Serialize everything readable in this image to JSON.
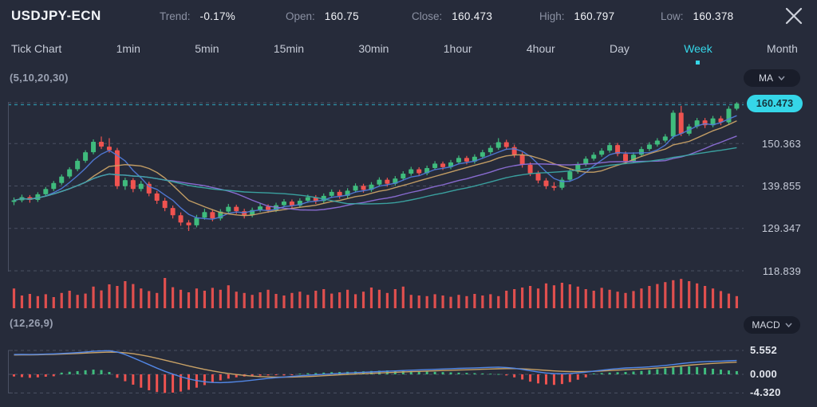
{
  "header": {
    "symbol": "USDJPY-ECN",
    "stats": [
      {
        "label": "Trend:",
        "value": "-0.17%"
      },
      {
        "label": "Open:",
        "value": "160.75"
      },
      {
        "label": "Close:",
        "value": "160.473"
      },
      {
        "label": "High:",
        "value": "160.797"
      },
      {
        "label": "Low:",
        "value": "160.378"
      }
    ]
  },
  "tabs": {
    "items": [
      "Tick Chart",
      "1min",
      "5min",
      "15min",
      "30min",
      "1hour",
      "4hour",
      "Day",
      "Week",
      "Month"
    ],
    "active": "Week",
    "active_index": 8
  },
  "colors": {
    "bg": "#262b3a",
    "text_primary": "#f2f4f8",
    "text_secondary": "#8b91a3",
    "tab_text": "#c5cad6",
    "accent_cyan": "#35d6e8",
    "pill_bg": "#191d2a",
    "pill_text": "#d4d8e2",
    "price_label": "#c7ccd9",
    "macd_label": "#e4e7ee",
    "grid": "#4a5063",
    "grid_accent": "#2e93a8",
    "up": "#3fbb7d",
    "down": "#ef5350",
    "ma5": "#507ad8",
    "ma10": "#c9a266",
    "ma20": "#8d6fd8",
    "ma30": "#3ba7a4",
    "dif": "#5287e6",
    "dea": "#c9a266"
  },
  "chart_data": [
    {
      "type": "candlestick",
      "title": "USDJPY-ECN Weekly candlestick with MA(5,10,20,30) and volume",
      "indicator_label": "(5,10,20,30)",
      "selector_label": "MA",
      "last_price": "160.473",
      "y_axis_labels": [
        "160.473",
        "150.363",
        "139.855",
        "129.347",
        "118.839"
      ],
      "ma_periods": [
        5,
        10,
        20,
        30
      ],
      "legend_position": "none",
      "grid": "dashed-horizontal",
      "candles": [
        [
          136.1,
          137.2,
          135.3,
          136.5
        ],
        [
          136.5,
          137.9,
          136.0,
          137.3
        ],
        [
          137.3,
          137.8,
          135.9,
          136.6
        ],
        [
          136.6,
          138.5,
          136.1,
          138.0
        ],
        [
          138.0,
          139.8,
          137.5,
          139.3
        ],
        [
          139.3,
          141.3,
          138.8,
          140.8
        ],
        [
          140.8,
          142.9,
          140.3,
          142.4
        ],
        [
          142.4,
          144.7,
          141.9,
          144.2
        ],
        [
          144.2,
          146.8,
          143.7,
          146.3
        ],
        [
          146.3,
          148.9,
          145.8,
          148.4
        ],
        [
          148.4,
          151.6,
          147.9,
          151.0
        ],
        [
          151.0,
          152.3,
          149.2,
          149.8
        ],
        [
          149.8,
          151.9,
          148.3,
          148.9
        ],
        [
          148.9,
          149.5,
          139.3,
          140.0
        ],
        [
          140.0,
          142.1,
          139.1,
          141.5
        ],
        [
          141.5,
          142.0,
          138.5,
          139.3
        ],
        [
          139.3,
          141.3,
          138.7,
          140.6
        ],
        [
          140.6,
          141.1,
          137.5,
          138.2
        ],
        [
          138.2,
          138.8,
          135.6,
          136.4
        ],
        [
          136.4,
          137.1,
          133.8,
          134.6
        ],
        [
          134.6,
          135.2,
          132.0,
          132.8
        ],
        [
          132.8,
          133.5,
          130.2,
          131.0
        ],
        [
          131.0,
          131.6,
          128.9,
          130.3
        ],
        [
          130.3,
          132.9,
          129.8,
          132.2
        ],
        [
          132.2,
          134.4,
          131.7,
          133.6
        ],
        [
          133.6,
          134.1,
          131.3,
          132.0
        ],
        [
          132.0,
          134.3,
          131.5,
          133.7
        ],
        [
          133.7,
          135.6,
          133.2,
          134.9
        ],
        [
          134.9,
          135.4,
          133.1,
          133.8
        ],
        [
          133.8,
          134.4,
          132.0,
          132.8
        ],
        [
          132.8,
          134.7,
          132.3,
          134.1
        ],
        [
          134.1,
          135.7,
          133.6,
          135.0
        ],
        [
          135.0,
          135.5,
          133.4,
          134.1
        ],
        [
          134.1,
          135.9,
          133.6,
          135.3
        ],
        [
          135.3,
          136.8,
          134.8,
          136.2
        ],
        [
          136.2,
          136.7,
          134.5,
          135.2
        ],
        [
          135.2,
          137.0,
          134.7,
          136.4
        ],
        [
          136.4,
          137.9,
          135.9,
          137.3
        ],
        [
          137.3,
          137.8,
          135.6,
          136.3
        ],
        [
          136.3,
          138.2,
          135.8,
          137.6
        ],
        [
          137.6,
          139.2,
          137.1,
          138.6
        ],
        [
          138.6,
          139.1,
          136.9,
          137.6
        ],
        [
          137.6,
          139.5,
          137.1,
          138.9
        ],
        [
          138.9,
          140.7,
          138.4,
          140.1
        ],
        [
          140.1,
          140.6,
          138.4,
          139.1
        ],
        [
          139.1,
          141.0,
          138.6,
          140.4
        ],
        [
          140.4,
          142.2,
          139.9,
          141.6
        ],
        [
          141.6,
          142.1,
          139.9,
          140.6
        ],
        [
          140.6,
          142.5,
          140.1,
          141.9
        ],
        [
          141.9,
          143.7,
          141.4,
          143.1
        ],
        [
          143.1,
          144.8,
          142.6,
          144.2
        ],
        [
          144.2,
          144.7,
          142.5,
          143.2
        ],
        [
          143.2,
          145.1,
          142.7,
          144.5
        ],
        [
          144.5,
          146.2,
          144.0,
          145.6
        ],
        [
          145.6,
          146.1,
          144.0,
          144.7
        ],
        [
          144.7,
          146.5,
          144.2,
          145.9
        ],
        [
          145.9,
          147.6,
          145.4,
          147.0
        ],
        [
          147.0,
          147.5,
          145.4,
          146.1
        ],
        [
          146.1,
          147.9,
          145.6,
          147.3
        ],
        [
          147.3,
          149.0,
          146.8,
          148.4
        ],
        [
          148.4,
          150.1,
          147.9,
          149.5
        ],
        [
          149.5,
          151.9,
          149.0,
          150.9
        ],
        [
          150.9,
          151.5,
          149.0,
          149.7
        ],
        [
          149.7,
          150.3,
          147.1,
          147.8
        ],
        [
          147.8,
          148.4,
          144.6,
          145.3
        ],
        [
          145.3,
          145.9,
          142.5,
          143.2
        ],
        [
          143.2,
          143.8,
          140.7,
          141.4
        ],
        [
          141.4,
          142.0,
          139.3,
          140.0
        ],
        [
          140.0,
          141.0,
          138.9,
          139.6
        ],
        [
          139.6,
          142.2,
          139.1,
          141.6
        ],
        [
          141.6,
          144.2,
          141.1,
          143.6
        ],
        [
          143.6,
          146.0,
          143.1,
          145.4
        ],
        [
          145.4,
          147.4,
          144.9,
          146.8
        ],
        [
          146.8,
          148.4,
          146.3,
          147.8
        ],
        [
          147.8,
          149.4,
          147.3,
          148.8
        ],
        [
          148.8,
          150.8,
          148.3,
          150.2
        ],
        [
          150.2,
          150.7,
          147.4,
          148.0
        ],
        [
          148.0,
          148.6,
          145.5,
          146.2
        ],
        [
          146.2,
          148.4,
          145.7,
          147.8
        ],
        [
          147.8,
          149.8,
          147.3,
          149.2
        ],
        [
          149.2,
          150.9,
          148.7,
          150.3
        ],
        [
          150.3,
          151.9,
          149.8,
          151.3
        ],
        [
          151.3,
          152.9,
          150.8,
          152.3
        ],
        [
          152.3,
          158.8,
          151.8,
          158.2
        ],
        [
          158.2,
          159.9,
          152.4,
          153.0
        ],
        [
          153.0,
          155.4,
          152.5,
          154.8
        ],
        [
          154.8,
          156.9,
          154.3,
          156.3
        ],
        [
          156.3,
          156.9,
          154.4,
          155.1
        ],
        [
          155.1,
          157.4,
          154.6,
          156.8
        ],
        [
          156.8,
          157.4,
          155.1,
          155.8
        ],
        [
          155.8,
          159.8,
          155.3,
          159.2
        ],
        [
          159.2,
          160.797,
          158.8,
          160.473
        ]
      ],
      "volumes": [
        62,
        40,
        45,
        38,
        44,
        35,
        48,
        55,
        42,
        46,
        68,
        56,
        75,
        70,
        85,
        76,
        62,
        54,
        48,
        95,
        66,
        58,
        50,
        62,
        55,
        64,
        58,
        72,
        52,
        48,
        42,
        50,
        58,
        45,
        40,
        48,
        52,
        42,
        55,
        60,
        46,
        50,
        58,
        44,
        52,
        65,
        58,
        48,
        60,
        68,
        42,
        40,
        38,
        44,
        40,
        36,
        42,
        38,
        45,
        40,
        44,
        38,
        55,
        60,
        65,
        70,
        62,
        78,
        72,
        80,
        75,
        68,
        60,
        55,
        64,
        58,
        52,
        48,
        54,
        62,
        70,
        76,
        82,
        88,
        92,
        85,
        78,
        70,
        62,
        54,
        46,
        38
      ]
    },
    {
      "type": "macd",
      "title": "MACD(12,26,9)",
      "indicator_label": "(12,26,9)",
      "selector_label": "MACD",
      "params": [
        12,
        26,
        9
      ],
      "y_axis_labels": [
        "5.552",
        "0.000",
        "-4.320"
      ],
      "grid": "dashed-horizontal",
      "dif": [
        4.6,
        4.62,
        4.6,
        4.65,
        4.7,
        4.76,
        4.84,
        4.94,
        5.06,
        5.2,
        5.34,
        5.45,
        5.5,
        5.2,
        4.6,
        3.85,
        3.05,
        2.25,
        1.45,
        0.7,
        0.05,
        -0.55,
        -1.05,
        -1.45,
        -1.72,
        -1.88,
        -1.92,
        -1.85,
        -1.72,
        -1.55,
        -1.35,
        -1.15,
        -0.95,
        -0.78,
        -0.62,
        -0.48,
        -0.34,
        -0.22,
        -0.1,
        0.02,
        0.12,
        0.22,
        0.31,
        0.4,
        0.48,
        0.56,
        0.64,
        0.72,
        0.8,
        0.88,
        0.96,
        1.03,
        1.1,
        1.17,
        1.24,
        1.31,
        1.38,
        1.44,
        1.5,
        1.56,
        1.62,
        1.68,
        1.6,
        1.42,
        1.15,
        0.85,
        0.55,
        0.32,
        0.18,
        0.14,
        0.2,
        0.34,
        0.52,
        0.74,
        0.96,
        1.16,
        1.34,
        1.48,
        1.55,
        1.62,
        1.74,
        1.9,
        2.08,
        2.28,
        2.5,
        2.7,
        2.85,
        2.95,
        3.02,
        3.08,
        3.15,
        3.22
      ],
      "dea": [
        4.5,
        4.52,
        4.54,
        4.56,
        4.6,
        4.64,
        4.7,
        4.77,
        4.85,
        4.94,
        5.03,
        5.11,
        5.16,
        5.14,
        5.02,
        4.8,
        4.5,
        4.14,
        3.74,
        3.3,
        2.85,
        2.4,
        1.96,
        1.54,
        1.15,
        0.8,
        0.48,
        0.2,
        -0.04,
        -0.24,
        -0.4,
        -0.52,
        -0.6,
        -0.64,
        -0.65,
        -0.63,
        -0.58,
        -0.51,
        -0.42,
        -0.32,
        -0.22,
        -0.12,
        -0.02,
        0.07,
        0.16,
        0.24,
        0.32,
        0.4,
        0.48,
        0.55,
        0.62,
        0.69,
        0.76,
        0.82,
        0.88,
        0.94,
        1.0,
        1.06,
        1.12,
        1.18,
        1.24,
        1.3,
        1.34,
        1.34,
        1.28,
        1.18,
        1.05,
        0.92,
        0.8,
        0.7,
        0.64,
        0.62,
        0.64,
        0.7,
        0.78,
        0.88,
        0.98,
        1.08,
        1.16,
        1.24,
        1.34,
        1.46,
        1.6,
        1.76,
        1.94,
        2.12,
        2.28,
        2.42,
        2.54,
        2.64,
        2.74,
        2.84
      ],
      "hist": [
        -0.5,
        -0.65,
        -0.8,
        -0.7,
        -0.55,
        -0.45,
        0.4,
        0.6,
        0.75,
        0.95,
        1.1,
        1.0,
        0.55,
        -0.8,
        -1.6,
        -2.4,
        -3.1,
        -3.7,
        -4.1,
        -4.32,
        -4.25,
        -4.0,
        -3.6,
        -3.1,
        -2.5,
        -1.9,
        -1.4,
        -1.0,
        -0.7,
        -0.5,
        -0.35,
        -0.3,
        -0.25,
        -0.2,
        -0.25,
        -0.2,
        0.15,
        0.25,
        0.3,
        0.4,
        0.5,
        0.55,
        0.6,
        0.65,
        0.7,
        0.78,
        0.85,
        0.9,
        0.87,
        0.82,
        0.76,
        0.7,
        0.64,
        0.58,
        0.52,
        0.46,
        0.4,
        0.34,
        0.28,
        0.22,
        0.15,
        0.08,
        -0.25,
        -0.7,
        -1.2,
        -1.7,
        -2.1,
        -2.35,
        -2.45,
        -2.25,
        -1.8,
        -1.25,
        -0.7,
        0.2,
        0.3,
        0.4,
        0.5,
        0.55,
        0.65,
        0.8,
        1.0,
        1.2,
        1.4,
        1.6,
        1.75,
        1.85,
        1.7,
        1.5,
        1.3,
        1.1,
        0.9,
        0.75
      ]
    }
  ]
}
